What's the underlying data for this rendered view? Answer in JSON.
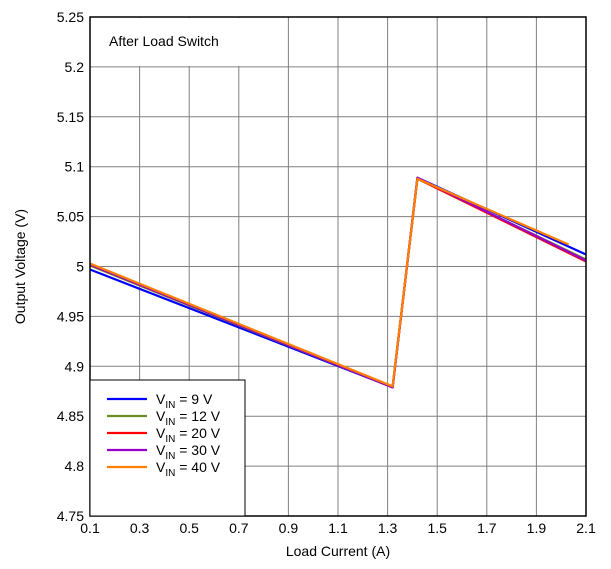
{
  "chart_data": {
    "type": "line",
    "annotation": "After Load Switch",
    "xlabel": "Load Current (A)",
    "ylabel": "Output Voltage (V)",
    "xlim": [
      0.1,
      2.1
    ],
    "ylim": [
      4.75,
      5.25
    ],
    "x_ticks": [
      0.1,
      0.3,
      0.5,
      0.7,
      0.9,
      1.1,
      1.3,
      1.5,
      1.7,
      1.9,
      2.1
    ],
    "x_tick_labels": [
      "0.1",
      "0.3",
      "0.5",
      "0.7",
      "0.9",
      "1.1",
      "1.3",
      "1.5",
      "1.7",
      "1.9",
      "2.1"
    ],
    "y_ticks": [
      4.75,
      4.8,
      4.85,
      4.9,
      4.95,
      5.0,
      5.05,
      5.1,
      5.15,
      5.2,
      5.25
    ],
    "y_tick_labels": [
      "4.75",
      "4.8",
      "4.85",
      "4.9",
      "4.95",
      "5",
      "5.05",
      "5.1",
      "5.15",
      "5.2",
      "5.25"
    ],
    "grid": true,
    "legend_position": "bottom-left",
    "series": [
      {
        "name": "V",
        "name_sub": "IN",
        "name_suffix": " = 9 V",
        "color": "#0000ff",
        "x": [
          0.1,
          1.32,
          1.42,
          2.1
        ],
        "y": [
          4.997,
          4.879,
          5.089,
          5.012
        ]
      },
      {
        "name": "V",
        "name_sub": "IN",
        "name_suffix": " = 12 V",
        "color": "#6b8e23",
        "x": [
          0.1,
          1.32,
          1.42,
          2.1
        ],
        "y": [
          5.001,
          4.879,
          5.088,
          5.007
        ]
      },
      {
        "name": "V",
        "name_sub": "IN",
        "name_suffix": " = 20 V",
        "color": "#ff0000",
        "x": [
          0.1,
          1.32,
          1.42,
          2.1
        ],
        "y": [
          5.002,
          4.879,
          5.088,
          5.005
        ]
      },
      {
        "name": "V",
        "name_sub": "IN",
        "name_suffix": " = 30 V",
        "color": "#9900cc",
        "x": [
          0.1,
          1.32,
          1.42,
          2.1
        ],
        "y": [
          5.002,
          4.879,
          5.089,
          5.006
        ]
      },
      {
        "name": "V",
        "name_sub": "IN",
        "name_suffix": " = 40 V",
        "color": "#ff8000",
        "x": [
          0.1,
          1.32,
          1.42,
          2.03
        ],
        "y": [
          5.003,
          4.88,
          5.088,
          5.022
        ]
      }
    ]
  }
}
